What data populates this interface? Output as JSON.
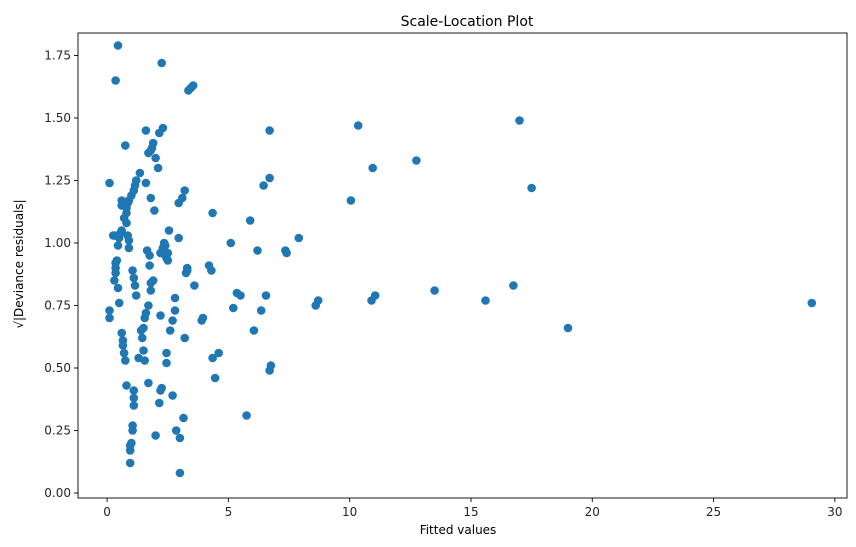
{
  "chart_data": {
    "type": "scatter",
    "title": "Scale-Location Plot",
    "xlabel": "Fitted values",
    "ylabel": "√|Deviance residuals|",
    "xlim": [
      -1.2,
      30.5
    ],
    "ylim": [
      -0.02,
      1.84
    ],
    "xticks": [
      0,
      5,
      10,
      15,
      20,
      25,
      30
    ],
    "xtick_labels": [
      "0",
      "5",
      "10",
      "15",
      "20",
      "25",
      "30"
    ],
    "yticks": [
      0.0,
      0.25,
      0.5,
      0.75,
      1.0,
      1.25,
      1.5,
      1.75
    ],
    "ytick_labels": [
      "0.00",
      "0.25",
      "0.50",
      "0.75",
      "1.00",
      "1.25",
      "1.50",
      "1.75"
    ],
    "grid": false,
    "marker_color": "#1f77b4",
    "points": [
      [
        0.1,
        1.24
      ],
      [
        0.1,
        0.73
      ],
      [
        0.1,
        0.7
      ],
      [
        0.25,
        1.03
      ],
      [
        0.3,
        1.03
      ],
      [
        0.3,
        0.85
      ],
      [
        0.35,
        0.9
      ],
      [
        0.35,
        0.88
      ],
      [
        0.35,
        0.92
      ],
      [
        0.4,
        0.93
      ],
      [
        0.35,
        1.65
      ],
      [
        0.45,
        1.79
      ],
      [
        0.45,
        0.99
      ],
      [
        0.45,
        0.82
      ],
      [
        0.5,
        1.02
      ],
      [
        0.5,
        0.76
      ],
      [
        0.55,
        1.04
      ],
      [
        0.6,
        1.17
      ],
      [
        0.6,
        1.15
      ],
      [
        0.6,
        1.05
      ],
      [
        0.6,
        0.64
      ],
      [
        0.65,
        0.61
      ],
      [
        0.65,
        0.59
      ],
      [
        0.7,
        0.56
      ],
      [
        0.7,
        1.1
      ],
      [
        0.75,
        0.53
      ],
      [
        0.75,
        1.39
      ],
      [
        0.8,
        1.08
      ],
      [
        0.8,
        1.12
      ],
      [
        0.8,
        1.14
      ],
      [
        0.8,
        0.43
      ],
      [
        0.85,
        1.16
      ],
      [
        0.85,
        1.03
      ],
      [
        0.9,
        1.01
      ],
      [
        0.9,
        0.98
      ],
      [
        0.9,
        1.17
      ],
      [
        0.95,
        0.19
      ],
      [
        0.95,
        0.17
      ],
      [
        0.95,
        0.12
      ],
      [
        1.0,
        0.2
      ],
      [
        1.0,
        1.19
      ],
      [
        1.05,
        0.25
      ],
      [
        1.05,
        0.27
      ],
      [
        1.05,
        0.89
      ],
      [
        1.1,
        1.21
      ],
      [
        1.1,
        0.86
      ],
      [
        1.1,
        0.41
      ],
      [
        1.1,
        0.38
      ],
      [
        1.1,
        0.35
      ],
      [
        1.15,
        1.23
      ],
      [
        1.15,
        0.83
      ],
      [
        1.2,
        1.25
      ],
      [
        1.2,
        0.79
      ],
      [
        1.35,
        1.28
      ],
      [
        1.3,
        0.54
      ],
      [
        1.4,
        0.65
      ],
      [
        1.45,
        0.62
      ],
      [
        1.5,
        0.66
      ],
      [
        1.5,
        0.57
      ],
      [
        1.55,
        0.53
      ],
      [
        1.55,
        0.7
      ],
      [
        1.6,
        1.45
      ],
      [
        1.6,
        0.72
      ],
      [
        1.6,
        1.24
      ],
      [
        1.65,
        0.97
      ],
      [
        1.7,
        1.36
      ],
      [
        1.7,
        0.75
      ],
      [
        1.7,
        0.44
      ],
      [
        1.75,
        0.95
      ],
      [
        1.75,
        0.91
      ],
      [
        1.8,
        1.37
      ],
      [
        1.8,
        1.18
      ],
      [
        1.8,
        0.84
      ],
      [
        1.8,
        0.81
      ],
      [
        1.85,
        1.38
      ],
      [
        1.9,
        1.4
      ],
      [
        1.9,
        0.85
      ],
      [
        1.95,
        1.13
      ],
      [
        2.0,
        1.34
      ],
      [
        2.0,
        0.23
      ],
      [
        2.1,
        1.3
      ],
      [
        2.15,
        1.44
      ],
      [
        2.15,
        0.36
      ],
      [
        2.2,
        0.96
      ],
      [
        2.2,
        0.71
      ],
      [
        2.2,
        0.41
      ],
      [
        2.25,
        1.72
      ],
      [
        2.25,
        0.42
      ],
      [
        2.3,
        0.98
      ],
      [
        2.3,
        1.46
      ],
      [
        2.3,
        0.97
      ],
      [
        2.35,
        1.0
      ],
      [
        2.4,
        0.99
      ],
      [
        2.4,
        0.95
      ],
      [
        2.45,
        0.94
      ],
      [
        2.45,
        0.52
      ],
      [
        2.45,
        0.56
      ],
      [
        2.5,
        0.96
      ],
      [
        2.5,
        0.93
      ],
      [
        2.55,
        1.05
      ],
      [
        2.6,
        0.65
      ],
      [
        2.7,
        0.39
      ],
      [
        2.7,
        0.69
      ],
      [
        2.8,
        0.73
      ],
      [
        2.8,
        0.78
      ],
      [
        2.85,
        0.25
      ],
      [
        2.95,
        1.02
      ],
      [
        2.95,
        1.16
      ],
      [
        3.0,
        0.08
      ],
      [
        3.0,
        0.22
      ],
      [
        3.1,
        1.18
      ],
      [
        3.15,
        0.3
      ],
      [
        3.2,
        1.21
      ],
      [
        3.2,
        0.62
      ],
      [
        3.25,
        0.88
      ],
      [
        3.3,
        0.89
      ],
      [
        3.3,
        0.9
      ],
      [
        3.35,
        1.61
      ],
      [
        3.45,
        1.62
      ],
      [
        3.55,
        1.63
      ],
      [
        3.6,
        0.83
      ],
      [
        3.9,
        0.69
      ],
      [
        3.95,
        0.7
      ],
      [
        4.2,
        0.91
      ],
      [
        4.3,
        0.89
      ],
      [
        4.35,
        1.12
      ],
      [
        4.35,
        0.54
      ],
      [
        4.45,
        0.46
      ],
      [
        4.6,
        0.56
      ],
      [
        5.1,
        1.0
      ],
      [
        5.2,
        0.74
      ],
      [
        5.35,
        0.8
      ],
      [
        5.5,
        0.79
      ],
      [
        5.75,
        0.31
      ],
      [
        5.9,
        1.09
      ],
      [
        6.05,
        0.65
      ],
      [
        6.2,
        0.97
      ],
      [
        6.35,
        0.73
      ],
      [
        6.45,
        1.23
      ],
      [
        6.55,
        0.79
      ],
      [
        6.7,
        1.45
      ],
      [
        6.7,
        1.26
      ],
      [
        6.7,
        0.49
      ],
      [
        6.75,
        0.51
      ],
      [
        7.35,
        0.97
      ],
      [
        7.4,
        0.96
      ],
      [
        7.9,
        1.02
      ],
      [
        8.6,
        0.75
      ],
      [
        8.7,
        0.77
      ],
      [
        10.05,
        1.17
      ],
      [
        10.35,
        1.47
      ],
      [
        10.9,
        0.77
      ],
      [
        10.95,
        1.3
      ],
      [
        11.05,
        0.79
      ],
      [
        12.75,
        1.33
      ],
      [
        13.5,
        0.81
      ],
      [
        15.6,
        0.77
      ],
      [
        16.75,
        0.83
      ],
      [
        17.0,
        1.49
      ],
      [
        17.5,
        1.22
      ],
      [
        19.0,
        0.66
      ],
      [
        29.05,
        0.76
      ]
    ]
  }
}
